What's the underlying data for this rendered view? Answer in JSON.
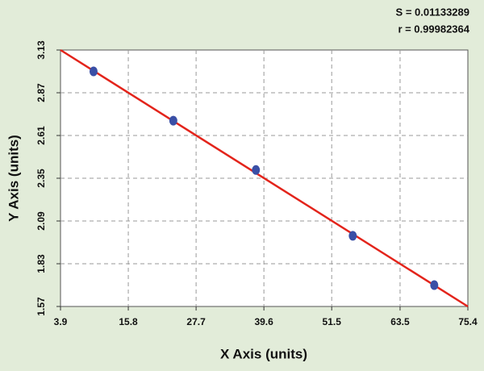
{
  "chart_data": {
    "type": "scatter",
    "annotations": [
      "S = 0.01133289",
      "r = 0.99982364"
    ],
    "x_label": "X Axis (units)",
    "y_label": "Y Axis (units)",
    "xlim": [
      3.9,
      75.4
    ],
    "xticks": [
      3.9,
      15.8,
      27.7,
      39.6,
      51.5,
      63.5,
      75.4
    ],
    "ylim": [
      1.57,
      3.13
    ],
    "yticks": [
      1.57,
      1.83,
      2.09,
      2.35,
      2.61,
      2.87,
      3.13
    ],
    "grid": true,
    "series": [
      {
        "mode": "markers",
        "color": "#3a4fa6",
        "x": [
          9.7,
          23.7,
          38.2,
          55.2,
          69.5
        ],
        "values": [
          3.0,
          2.7,
          2.4,
          2.0,
          1.7
        ]
      },
      {
        "mode": "line",
        "color": "#e3241b",
        "x": [
          3.9,
          75.4
        ],
        "values": [
          3.13,
          1.57
        ]
      }
    ]
  }
}
